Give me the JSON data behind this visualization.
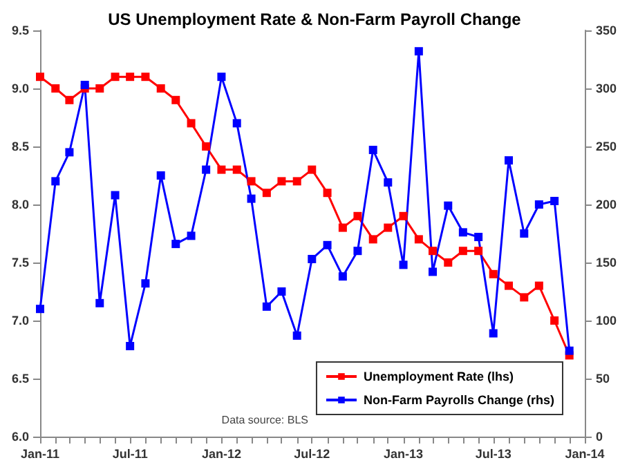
{
  "chart_data": {
    "type": "line",
    "title": "US Unemployment Rate & Non-Farm Payroll Change",
    "annotations": [
      "Data source: BLS"
    ],
    "x": [
      "2011-01",
      "2011-02",
      "2011-03",
      "2011-04",
      "2011-05",
      "2011-06",
      "2011-07",
      "2011-08",
      "2011-09",
      "2011-10",
      "2011-11",
      "2011-12",
      "2012-01",
      "2012-02",
      "2012-03",
      "2012-04",
      "2012-05",
      "2012-06",
      "2012-07",
      "2012-08",
      "2012-09",
      "2012-10",
      "2012-11",
      "2012-12",
      "2013-01",
      "2013-02",
      "2013-03",
      "2013-04",
      "2013-05",
      "2013-06",
      "2013-07",
      "2013-08",
      "2013-09",
      "2013-10",
      "2013-11",
      "2013-12"
    ],
    "series": [
      {
        "name": "Unemployment Rate (lhs)",
        "color": "#ff0000",
        "values": [
          9.1,
          9.0,
          8.9,
          9.0,
          9.0,
          9.1,
          9.1,
          9.1,
          9.0,
          8.9,
          8.7,
          8.5,
          8.3,
          8.3,
          8.2,
          8.1,
          8.2,
          8.2,
          8.3,
          8.1,
          7.8,
          7.9,
          7.7,
          7.8,
          7.9,
          7.7,
          7.6,
          7.5,
          7.6,
          7.6,
          7.4,
          7.3,
          7.2,
          7.3,
          7.0,
          6.7
        ]
      },
      {
        "name": "Non-Farm Payrolls Change (rhs)",
        "color": "#0000ff",
        "axis": "y2",
        "values": [
          110,
          220,
          245,
          303,
          115,
          208,
          78,
          132,
          225,
          166,
          173,
          230,
          310,
          270,
          205,
          112,
          125,
          87,
          153,
          165,
          138,
          160,
          247,
          219,
          148,
          332,
          142,
          199,
          176,
          172,
          89,
          238,
          175,
          200,
          203,
          74
        ]
      }
    ],
    "xlim": [
      "2011-01",
      "2014-01"
    ],
    "xticks": [
      {
        "value": "2011-01",
        "label": "Jan-11"
      },
      {
        "value": "2011-07",
        "label": "Jul-11"
      },
      {
        "value": "2012-01",
        "label": "Jan-12"
      },
      {
        "value": "2012-07",
        "label": "Jul-12"
      },
      {
        "value": "2013-01",
        "label": "Jan-13"
      },
      {
        "value": "2013-07",
        "label": "Jul-13"
      },
      {
        "value": "2014-01",
        "label": "Jan-14"
      }
    ],
    "ylim": [
      6.0,
      9.5
    ],
    "yticks": [
      {
        "value": 6.0,
        "label": "6.0"
      },
      6.5,
      {
        "value": 7.0,
        "label": "7.0"
      },
      7.5,
      {
        "value": 8.0,
        "label": "8.0"
      },
      8.5,
      {
        "value": 9.0,
        "label": "9.0"
      },
      9.5
    ],
    "y2lim": [
      0,
      350
    ],
    "y2ticks": [
      0,
      50,
      100,
      150,
      200,
      250,
      300,
      350
    ],
    "legend": "bottom right",
    "marker": "square",
    "line_style": "solid",
    "grid": false
  }
}
